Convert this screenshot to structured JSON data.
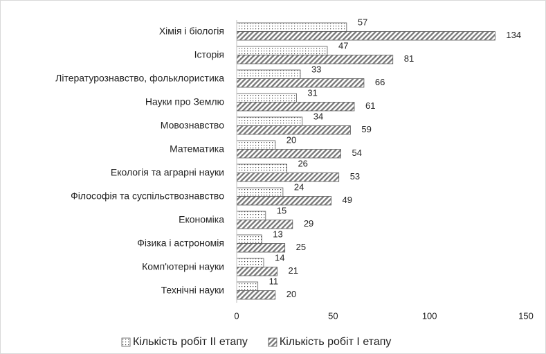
{
  "chart_data": {
    "type": "bar",
    "orientation": "horizontal",
    "categories": [
      "Хімія і біологія",
      "Історія",
      "Літературознавство, фольклористика",
      "Науки про Землю",
      "Мовознавство",
      "Математика",
      "Екологія та аграрні науки",
      "Філософія та суспільствознавство",
      "Економіка",
      "Фізика і астрономія",
      "Комп'ютерні науки",
      "Технічні науки"
    ],
    "series": [
      {
        "name": "Кількість робіт II етапу",
        "color": "#595959",
        "pattern": "dots",
        "values": [
          57,
          47,
          33,
          31,
          34,
          20,
          26,
          24,
          15,
          13,
          14,
          11
        ]
      },
      {
        "name": "Кількість робіт I етапу",
        "color": "#595959",
        "pattern": "hatch",
        "values": [
          134,
          81,
          66,
          61,
          59,
          54,
          53,
          49,
          29,
          25,
          21,
          20
        ]
      }
    ],
    "xlim": [
      0,
      150
    ],
    "xticks": [
      0,
      50,
      100,
      150
    ],
    "grid": false,
    "legend": "bottom"
  }
}
